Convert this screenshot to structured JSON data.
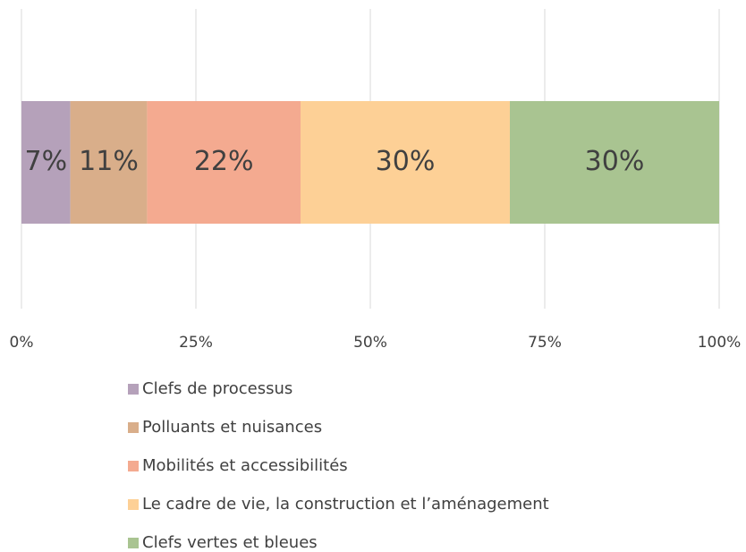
{
  "chart_data": {
    "type": "stacked_bar_horizontal",
    "series": [
      {
        "name": "Clefs de processus",
        "color": "#b5a1ba",
        "values": [
          7
        ],
        "value_labels": [
          "7%"
        ]
      },
      {
        "name": "Polluants et nuisances",
        "color": "#d9ae8a",
        "values": [
          11
        ],
        "value_labels": [
          "11%"
        ]
      },
      {
        "name": "Mobilités et accessibilités",
        "color": "#f4aa90",
        "values": [
          22
        ],
        "value_labels": [
          "22%"
        ]
      },
      {
        "name": "Le cadre de vie, la construction et l’aménagement",
        "color": "#fdd096",
        "values": [
          30
        ],
        "value_labels": [
          "30%"
        ]
      },
      {
        "name": "Clefs vertes et bleues",
        "color": "#a9c491",
        "values": [
          30
        ],
        "value_labels": [
          "30%"
        ]
      }
    ],
    "xlim": [
      0,
      100
    ],
    "xticks": [
      {
        "value": 0,
        "label": "0%"
      },
      {
        "value": 25,
        "label": "25%"
      },
      {
        "value": 50,
        "label": "50%"
      },
      {
        "value": 75,
        "label": "75%"
      },
      {
        "value": 100,
        "label": "100%"
      }
    ],
    "grid": true,
    "legend": "bottom"
  }
}
